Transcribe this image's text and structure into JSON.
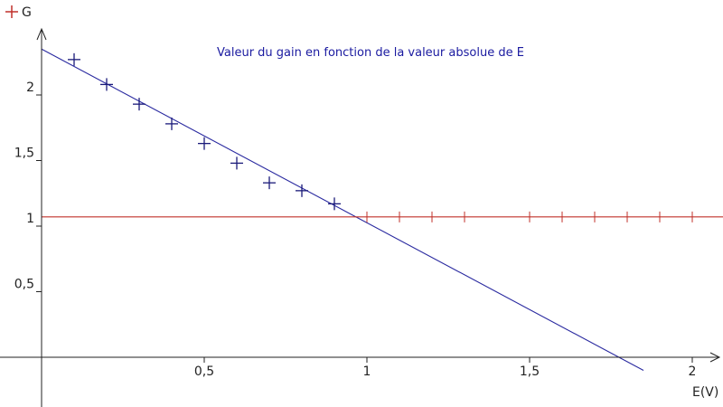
{
  "chart_data": {
    "type": "scatter",
    "title": "Valeur du gain en fonction de la valeur absolue de E",
    "xlabel": "E(V)",
    "ylabel": "",
    "legend": {
      "label": "G",
      "position": "top-left"
    },
    "xlim": [
      0,
      2.1
    ],
    "ylim": [
      0,
      2.45
    ],
    "x_ticks": [
      0.5,
      1,
      1.5,
      2
    ],
    "x_tick_labels": [
      "0,5",
      "1",
      "1,5",
      "2"
    ],
    "y_ticks": [
      0.5,
      1,
      1.5,
      2
    ],
    "y_tick_labels": [
      "0,5",
      "1",
      "1,5",
      "2"
    ],
    "grid": false,
    "series": [
      {
        "name": "G",
        "kind": "markers",
        "marker": "plus",
        "color": "#1a1a7a",
        "x": [
          0.1,
          0.2,
          0.3,
          0.4,
          0.5,
          0.6,
          0.7,
          0.8,
          0.9
        ],
        "y": [
          2.27,
          2.08,
          1.93,
          1.78,
          1.63,
          1.48,
          1.33,
          1.27,
          1.17
        ]
      },
      {
        "kind": "line",
        "color": "#2a2aa0",
        "x": [
          0,
          1.85
        ],
        "y": [
          2.35,
          -0.1
        ]
      },
      {
        "kind": "line",
        "color": "#c0302a",
        "x": [
          0,
          2.1
        ],
        "y": [
          1.07,
          1.07
        ]
      },
      {
        "kind": "ticks",
        "color": "#c0302a",
        "x": [
          1.0,
          1.1,
          1.2,
          1.3,
          1.5,
          1.6,
          1.7,
          1.8,
          1.9,
          2.0
        ],
        "y": [
          1.07,
          1.07,
          1.07,
          1.07,
          1.07,
          1.07,
          1.07,
          1.07,
          1.07,
          1.07
        ]
      }
    ],
    "colors": {
      "axis": "#222222",
      "title": "#1a1aa0",
      "legend": "#c0302a"
    }
  }
}
